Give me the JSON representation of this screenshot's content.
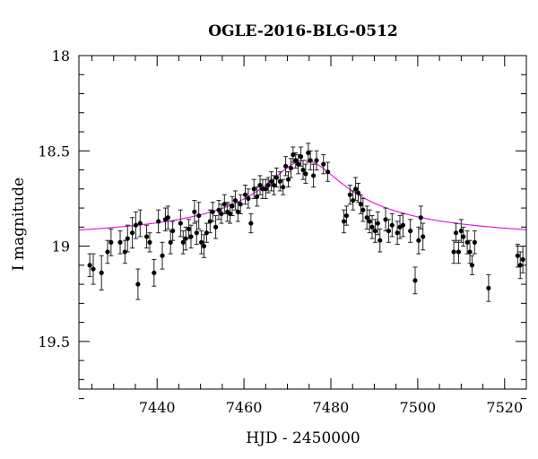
{
  "chart_data": {
    "type": "scatter",
    "title": "OGLE-2016-BLG-0512",
    "xlabel": "HJD - 2450000",
    "ylabel": "I magnitude",
    "xlim": [
      7422,
      7525
    ],
    "ylim": [
      19.75,
      18.0
    ],
    "y_inverted": true,
    "grid": false,
    "x_ticks": [
      7440,
      7460,
      7480,
      7500,
      7520
    ],
    "x_tick_labels": [
      "7440",
      "7460",
      "7480",
      "7500",
      "7520"
    ],
    "y_ticks": [
      18.0,
      18.5,
      19.0,
      19.5
    ],
    "y_tick_labels": [
      "18",
      "18.5",
      "19",
      "19.5"
    ],
    "model_color": "#e020e0",
    "point_color": "#000000",
    "model": {
      "t0": 7474.0,
      "peak_mag": 18.55,
      "base_mag": 18.99,
      "tau": 9.0
    },
    "series": [
      {
        "x": [
          7424.5,
          7425.3,
          7427.2,
          7428.6,
          7429.4,
          7431.5,
          7432.6,
          7433.2,
          7434.3,
          7435.1,
          7435.6,
          7436.1,
          7437.6,
          7438.3,
          7439.3,
          7440.3,
          7441.2,
          7441.9,
          7442.5,
          7443.1,
          7443.6,
          7445.4,
          7446.0,
          7446.6,
          7447.3,
          7447.8,
          7448.6,
          7449.1,
          7449.6,
          7450.2,
          7450.8,
          7451.4,
          7452.2,
          7452.8,
          7453.5,
          7454.2,
          7454.8,
          7455.5,
          7456.2,
          7456.8,
          7457.3,
          7458.0,
          7458.6,
          7459.2,
          7460.3,
          7461.0,
          7461.6,
          7462.3,
          7463.0,
          7463.7,
          7464.3,
          7465.0,
          7465.6,
          7466.3,
          7466.9,
          7467.5,
          7468.3,
          7469.0,
          7469.6,
          7470.2,
          7470.8,
          7471.3,
          7471.9,
          7472.5,
          7473.1,
          7473.6,
          7474.2,
          7474.8,
          7475.3,
          7476.0,
          7476.7,
          7478.3,
          7479.3,
          7483.0,
          7483.6,
          7484.4,
          7485.1,
          7485.7,
          7486.3,
          7486.9,
          7487.4,
          7488.3,
          7488.9,
          7489.5,
          7490.2,
          7490.8,
          7491.3,
          7492.6,
          7493.3,
          7494.1,
          7495.3,
          7495.9,
          7496.6,
          7498.3,
          7499.4,
          7500.2,
          7500.7,
          7501.2,
          7508.3,
          7508.8,
          7509.4,
          7510.0,
          7510.5,
          7511.4,
          7512.0,
          7512.5,
          7513.1,
          7516.3,
          7523.0,
          7523.6,
          7524.2
        ],
        "y": [
          19.1,
          19.12,
          19.14,
          19.03,
          18.98,
          18.98,
          19.03,
          18.96,
          18.93,
          18.89,
          19.2,
          18.88,
          18.95,
          18.98,
          19.14,
          18.87,
          19.05,
          18.86,
          18.85,
          18.98,
          18.92,
          18.88,
          18.98,
          18.96,
          18.91,
          18.95,
          18.82,
          18.93,
          18.84,
          18.98,
          19.0,
          18.93,
          18.87,
          18.82,
          18.9,
          18.81,
          18.83,
          18.78,
          18.82,
          18.83,
          18.79,
          18.76,
          18.82,
          18.78,
          18.73,
          18.75,
          18.88,
          18.7,
          18.74,
          18.68,
          18.7,
          18.7,
          18.68,
          18.66,
          18.68,
          18.64,
          18.66,
          18.69,
          18.58,
          18.65,
          18.59,
          18.52,
          18.55,
          18.57,
          18.53,
          18.6,
          18.62,
          18.51,
          18.55,
          18.63,
          18.55,
          18.57,
          18.61,
          18.87,
          18.84,
          18.73,
          18.76,
          18.7,
          18.72,
          18.78,
          18.81,
          18.85,
          18.87,
          18.9,
          18.92,
          18.88,
          18.97,
          18.86,
          18.92,
          18.89,
          18.93,
          18.9,
          18.89,
          18.92,
          19.18,
          18.97,
          18.85,
          18.95,
          19.03,
          18.93,
          19.03,
          18.92,
          18.95,
          18.98,
          19.03,
          19.1,
          18.98,
          19.22,
          19.05,
          19.1,
          19.07
        ],
        "err": [
          0.06,
          0.08,
          0.09,
          0.06,
          0.07,
          0.06,
          0.06,
          0.07,
          0.08,
          0.07,
          0.08,
          0.07,
          0.06,
          0.05,
          0.07,
          0.06,
          0.07,
          0.06,
          0.06,
          0.06,
          0.05,
          0.07,
          0.06,
          0.06,
          0.05,
          0.06,
          0.06,
          0.06,
          0.07,
          0.06,
          0.06,
          0.05,
          0.06,
          0.05,
          0.06,
          0.05,
          0.05,
          0.05,
          0.05,
          0.05,
          0.05,
          0.05,
          0.05,
          0.05,
          0.05,
          0.05,
          0.05,
          0.05,
          0.05,
          0.05,
          0.05,
          0.05,
          0.04,
          0.05,
          0.05,
          0.05,
          0.05,
          0.04,
          0.05,
          0.04,
          0.05,
          0.04,
          0.04,
          0.05,
          0.05,
          0.05,
          0.05,
          0.05,
          0.05,
          0.06,
          0.05,
          0.05,
          0.05,
          0.06,
          0.05,
          0.05,
          0.05,
          0.06,
          0.05,
          0.05,
          0.06,
          0.06,
          0.06,
          0.06,
          0.06,
          0.06,
          0.06,
          0.06,
          0.06,
          0.06,
          0.06,
          0.06,
          0.06,
          0.06,
          0.07,
          0.07,
          0.06,
          0.07,
          0.06,
          0.05,
          0.06,
          0.06,
          0.05,
          0.06,
          0.06,
          0.05,
          0.06,
          0.07,
          0.06,
          0.07,
          0.07
        ]
      }
    ]
  }
}
